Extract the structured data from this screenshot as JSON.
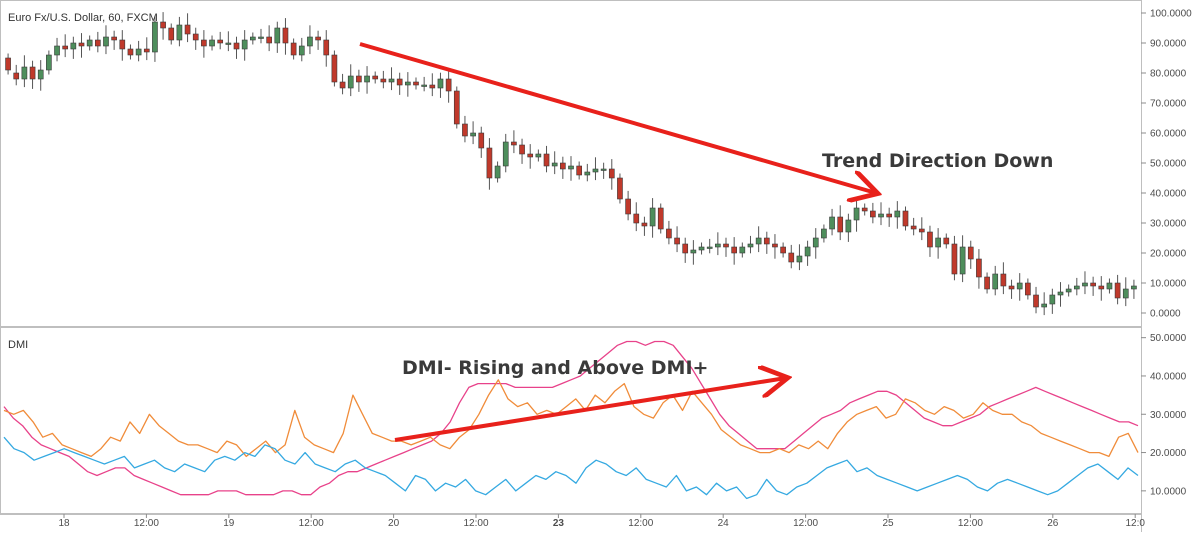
{
  "chart_data": [
    {
      "type": "candlestick",
      "title": "Euro Fx/U.S. Dollar, 60, FXCM",
      "ylim": [
        -3,
        103
      ],
      "yticks": [
        "100.0000",
        "90.0000",
        "80.0000",
        "70.0000",
        "60.0000",
        "50.0000",
        "40.0000",
        "30.0000",
        "20.0000",
        "10.0000",
        "0.0000"
      ],
      "ytick_values": [
        100,
        90,
        80,
        70,
        60,
        50,
        40,
        30,
        20,
        10,
        0
      ],
      "xticks": [
        "18",
        "12:00",
        "19",
        "12:00",
        "20",
        "12:00",
        "23",
        "12:00",
        "24",
        "12:00",
        "25",
        "12:00",
        "26",
        "12:0"
      ],
      "xtick_bold": "23",
      "up_color": "#4e8e5c",
      "down_color": "#c0392b",
      "candles": [
        [
          85,
          81
        ],
        [
          80,
          78
        ],
        [
          78,
          82
        ],
        [
          82,
          78
        ],
        [
          78,
          81
        ],
        [
          81,
          86
        ],
        [
          86,
          89
        ],
        [
          89,
          88
        ],
        [
          88,
          90
        ],
        [
          90,
          89
        ],
        [
          89,
          91
        ],
        [
          91,
          89
        ],
        [
          89,
          92
        ],
        [
          92,
          91
        ],
        [
          91,
          88
        ],
        [
          88,
          86
        ],
        [
          86,
          88
        ],
        [
          88,
          87
        ],
        [
          87,
          97
        ],
        [
          97,
          95
        ],
        [
          95,
          91
        ],
        [
          91,
          96
        ],
        [
          96,
          93
        ],
        [
          93,
          91
        ],
        [
          91,
          89
        ],
        [
          89,
          91
        ],
        [
          91,
          90
        ],
        [
          90,
          90
        ],
        [
          90,
          88
        ],
        [
          88,
          91
        ],
        [
          91,
          92
        ],
        [
          92,
          92
        ],
        [
          92,
          90
        ],
        [
          90,
          95
        ],
        [
          95,
          90
        ],
        [
          90,
          86
        ],
        [
          86,
          89
        ],
        [
          89,
          92
        ],
        [
          92,
          91
        ],
        [
          91,
          86
        ],
        [
          86,
          77
        ],
        [
          77,
          75
        ],
        [
          75,
          79
        ],
        [
          79,
          77
        ],
        [
          77,
          79
        ],
        [
          79,
          78
        ],
        [
          78,
          77
        ],
        [
          77,
          78
        ],
        [
          78,
          76
        ],
        [
          76,
          77
        ],
        [
          77,
          76
        ],
        [
          76,
          76
        ],
        [
          76,
          75
        ],
        [
          75,
          78
        ],
        [
          78,
          74
        ],
        [
          74,
          63
        ],
        [
          63,
          59
        ],
        [
          59,
          60
        ],
        [
          60,
          55
        ],
        [
          55,
          45
        ],
        [
          45,
          49
        ],
        [
          49,
          57
        ],
        [
          57,
          56
        ],
        [
          56,
          53
        ],
        [
          53,
          52
        ],
        [
          52,
          53
        ],
        [
          53,
          49
        ],
        [
          49,
          50
        ],
        [
          50,
          48
        ],
        [
          48,
          49
        ],
        [
          49,
          46
        ],
        [
          46,
          47
        ],
        [
          47,
          48
        ],
        [
          48,
          48
        ],
        [
          48,
          45
        ],
        [
          45,
          38
        ],
        [
          38,
          33
        ],
        [
          33,
          30
        ],
        [
          30,
          29
        ],
        [
          29,
          35
        ],
        [
          35,
          28
        ],
        [
          28,
          25
        ],
        [
          25,
          23
        ],
        [
          23,
          20
        ],
        [
          20,
          21
        ],
        [
          21,
          22
        ],
        [
          22,
          22
        ],
        [
          22,
          23
        ],
        [
          23,
          22
        ],
        [
          22,
          20
        ],
        [
          20,
          22
        ],
        [
          22,
          23
        ],
        [
          23,
          25
        ],
        [
          25,
          23
        ],
        [
          23,
          22
        ],
        [
          22,
          20
        ],
        [
          20,
          17
        ],
        [
          17,
          19
        ],
        [
          19,
          22
        ],
        [
          22,
          25
        ],
        [
          25,
          28
        ],
        [
          28,
          32
        ],
        [
          32,
          27
        ],
        [
          27,
          31
        ],
        [
          31,
          35
        ],
        [
          35,
          34
        ],
        [
          34,
          32
        ],
        [
          32,
          33
        ],
        [
          33,
          32
        ],
        [
          32,
          34
        ],
        [
          34,
          29
        ],
        [
          29,
          28
        ],
        [
          28,
          27
        ],
        [
          27,
          22
        ],
        [
          22,
          25
        ],
        [
          25,
          23
        ],
        [
          23,
          13
        ],
        [
          13,
          22
        ],
        [
          22,
          18
        ],
        [
          18,
          12
        ],
        [
          12,
          8
        ],
        [
          8,
          13
        ],
        [
          13,
          9
        ],
        [
          9,
          8
        ],
        [
          8,
          10
        ],
        [
          10,
          6
        ],
        [
          6,
          2
        ],
        [
          2,
          3
        ],
        [
          3,
          6
        ],
        [
          6,
          7
        ],
        [
          7,
          8
        ],
        [
          8,
          9
        ],
        [
          9,
          10
        ],
        [
          10,
          9
        ],
        [
          9,
          8
        ],
        [
          8,
          10
        ],
        [
          10,
          5
        ],
        [
          5,
          8
        ],
        [
          8,
          9
        ]
      ],
      "annotation": {
        "text": "Trend Direction Down",
        "arrow_from": [
          0,
          0
        ],
        "arrow_to": [
          0,
          0
        ]
      }
    },
    {
      "type": "line",
      "title": "DMI",
      "ylim": [
        5,
        52
      ],
      "yticks": [
        "50.0000",
        "40.0000",
        "30.0000",
        "20.0000",
        "10.0000"
      ],
      "ytick_values": [
        50,
        40,
        30,
        20,
        10
      ],
      "series": [
        {
          "color": "#e8428a",
          "values": [
            32,
            29,
            27,
            24,
            22,
            21,
            20,
            19,
            17,
            15,
            14,
            15,
            16,
            16,
            14,
            13,
            12,
            11,
            10,
            9,
            9,
            9,
            9,
            10,
            10,
            10,
            9,
            9,
            9,
            9,
            10,
            10,
            9,
            9,
            11,
            12,
            14,
            15,
            15,
            16,
            17,
            18,
            19,
            20,
            21,
            22,
            23,
            25,
            28,
            33,
            37,
            38,
            38,
            38,
            38,
            37,
            37,
            37,
            37,
            37,
            38,
            39,
            40,
            42,
            44,
            46,
            48,
            49,
            49,
            48,
            49,
            49,
            48,
            45,
            42,
            38,
            34,
            30,
            27,
            25,
            23,
            21,
            21,
            21,
            21,
            23,
            25,
            27,
            29,
            30,
            31,
            33,
            34,
            35,
            36,
            36,
            35,
            33,
            31,
            29,
            28,
            27,
            27,
            28,
            29,
            30,
            32,
            33,
            34,
            35,
            36,
            37,
            36,
            35,
            34,
            33,
            32,
            31,
            30,
            29,
            28,
            28,
            27
          ]
        },
        {
          "color": "#f08c3a",
          "values": [
            31,
            30,
            31,
            28,
            24,
            25,
            22,
            21,
            20,
            19,
            21,
            24,
            23,
            28,
            25,
            30,
            27,
            25,
            23,
            22,
            22,
            21,
            20,
            23,
            22,
            19,
            21,
            23,
            20,
            22,
            31,
            24,
            22,
            21,
            20,
            25,
            35,
            30,
            25,
            24,
            23,
            23,
            22,
            23,
            24,
            22,
            21,
            24,
            26,
            30,
            35,
            39,
            34,
            32,
            33,
            30,
            31,
            30,
            32,
            34,
            31,
            35,
            33,
            36,
            38,
            32,
            30,
            29,
            33,
            35,
            31,
            36,
            33,
            30,
            26,
            24,
            22,
            21,
            20,
            20,
            21,
            20,
            22,
            21,
            23,
            21,
            25,
            28,
            30,
            31,
            32,
            29,
            30,
            34,
            33,
            31,
            30,
            32,
            31,
            29,
            30,
            33,
            31,
            30,
            30,
            28,
            27,
            25,
            24,
            23,
            22,
            21,
            20,
            20,
            19,
            24,
            25,
            20
          ]
        },
        {
          "color": "#35a9e1",
          "values": [
            24,
            21,
            20,
            18,
            19,
            20,
            21,
            20,
            19,
            18,
            17,
            18,
            19,
            16,
            17,
            18,
            16,
            15,
            17,
            16,
            15,
            18,
            19,
            18,
            20,
            19,
            22,
            21,
            18,
            17,
            20,
            17,
            16,
            15,
            17,
            18,
            16,
            15,
            14,
            12,
            10,
            14,
            13,
            10,
            12,
            11,
            13,
            10,
            9,
            11,
            13,
            10,
            12,
            14,
            13,
            15,
            14,
            12,
            16,
            18,
            17,
            15,
            14,
            16,
            13,
            12,
            11,
            14,
            10,
            11,
            9,
            12,
            10,
            11,
            8,
            9,
            13,
            10,
            9,
            11,
            12,
            14,
            16,
            17,
            18,
            15,
            16,
            14,
            13,
            12,
            11,
            10,
            11,
            12,
            13,
            14,
            13,
            11,
            10,
            12,
            13,
            12,
            11,
            10,
            9,
            10,
            12,
            14,
            16,
            17,
            15,
            13,
            16,
            14
          ]
        }
      ],
      "annotation": {
        "text": "DMI- Rising and Above DMI+",
        "arrow_from": [
          0,
          0
        ],
        "arrow_to": [
          0,
          0
        ]
      }
    }
  ]
}
